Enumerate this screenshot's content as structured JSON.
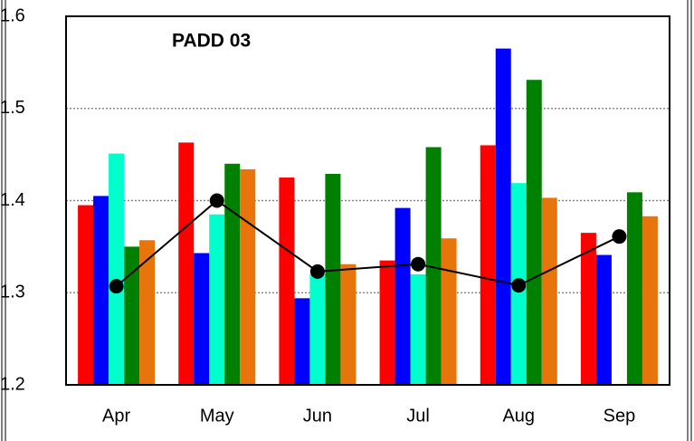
{
  "chart_data": {
    "type": "bar",
    "title": "PADD 03",
    "categories": [
      "Apr",
      "May",
      "Jun",
      "Jul",
      "Aug",
      "Sep"
    ],
    "series": [
      {
        "color": "#ff0000",
        "values": [
          1.395,
          1.463,
          1.425,
          1.335,
          1.46,
          1.365
        ]
      },
      {
        "color": "#0000ff",
        "values": [
          1.405,
          1.343,
          1.294,
          1.392,
          1.565,
          1.341
        ]
      },
      {
        "color": "#00ffcc",
        "values": [
          1.451,
          1.385,
          1.32,
          1.32,
          1.419,
          1.2
        ]
      },
      {
        "color": "#008000",
        "values": [
          1.35,
          1.44,
          1.429,
          1.458,
          1.531,
          1.409
        ]
      },
      {
        "color": "#e8740c",
        "values": [
          1.357,
          1.434,
          1.331,
          1.359,
          1.403,
          1.383
        ]
      }
    ],
    "line_series": {
      "type": "line",
      "color": "#000000",
      "values": [
        1.307,
        1.4,
        1.323,
        1.331,
        1.308,
        1.361
      ]
    },
    "ylim": [
      1.2,
      1.6
    ],
    "yticks": [
      1.2,
      1.3,
      1.4,
      1.5,
      1.6
    ],
    "grid": true
  }
}
